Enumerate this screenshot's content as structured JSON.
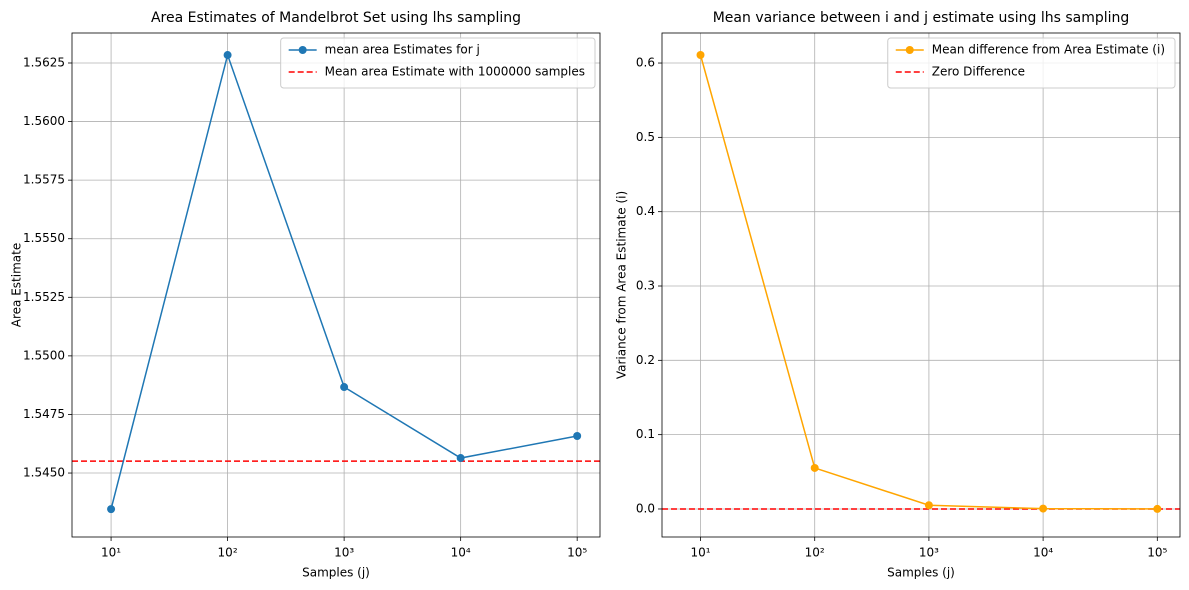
{
  "chart_data": [
    {
      "type": "line",
      "title": "Area Estimates of Mandelbrot Set using lhs sampling",
      "x_label": "Samples (j)",
      "y_label": "Area Estimate",
      "x": [
        10,
        100,
        1000,
        10000,
        100000
      ],
      "xscale": "log",
      "xlim": [
        4.62,
        157000
      ],
      "xticks": [
        {
          "value": 10,
          "label": "10¹"
        },
        {
          "value": 100,
          "label": "10²"
        },
        {
          "value": 1000,
          "label": "10³"
        },
        {
          "value": 10000,
          "label": "10⁴"
        },
        {
          "value": 100000,
          "label": "10⁵"
        }
      ],
      "ylim": [
        1.54227,
        1.56378
      ],
      "yticks": [
        {
          "value": 1.545,
          "label": "1.5450"
        },
        1.5475,
        {
          "value": 1.55,
          "label": "1.5500"
        },
        1.5525,
        {
          "value": 1.555,
          "label": "1.5550"
        },
        1.5575,
        {
          "value": 1.56,
          "label": "1.5600"
        },
        1.5625
      ],
      "grid": true,
      "legend": "upper right",
      "series": [
        {
          "name": "mean area Estimates for j",
          "color": "#1f77b4",
          "values": [
            1.54346,
            1.56284,
            1.54867,
            1.54564,
            1.54658
          ]
        }
      ],
      "hlines": [
        {
          "name": " Mean area Estimate with 1000000 samples",
          "color": "#ff0000",
          "value": 1.54551
        }
      ]
    },
    {
      "type": "line",
      "title": "Mean variance between i and j estimate using lhs sampling",
      "x_label": "Samples (j)",
      "y_label": "Variance from Area Estimate (i)",
      "x": [
        10,
        100,
        1000,
        10000,
        100000
      ],
      "xscale": "log",
      "xlim": [
        4.6,
        158000
      ],
      "xticks": [
        {
          "value": 10,
          "label": "10¹"
        },
        {
          "value": 100,
          "label": "10²"
        },
        {
          "value": 1000,
          "label": "10³"
        },
        {
          "value": 10000,
          "label": "10⁴"
        },
        {
          "value": 100000,
          "label": "10⁵"
        }
      ],
      "ylim": [
        -0.0377,
        0.6404
      ],
      "yticks": [
        {
          "value": 0,
          "label": "0.0"
        },
        0.1,
        0.2,
        0.3,
        0.4,
        0.5,
        0.6
      ],
      "grid": true,
      "legend": "upper right",
      "series": [
        {
          "name": "Mean difference from Area Estimate (i)",
          "color": "#ffa500",
          "values": [
            0.6108,
            0.0552,
            0.005,
            0.0005,
            0.0001
          ]
        }
      ],
      "hlines": [
        {
          "name": "Zero Difference",
          "color": "#ff0000",
          "value": 0
        }
      ]
    }
  ]
}
